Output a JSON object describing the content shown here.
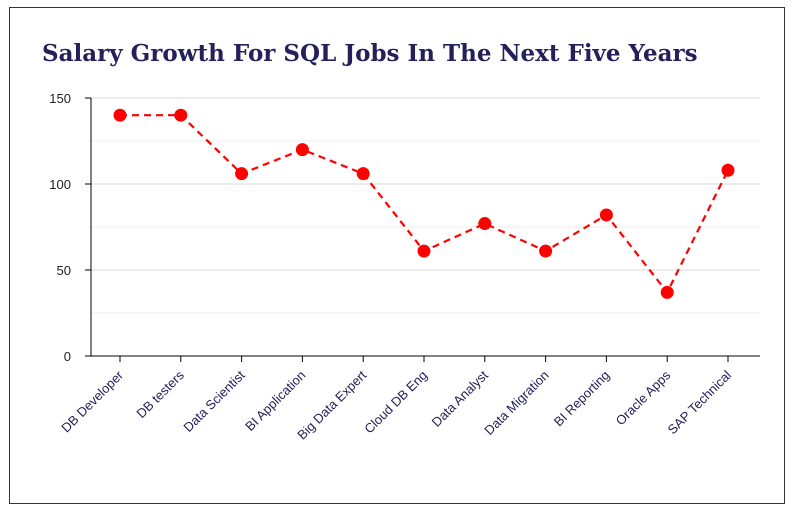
{
  "chart_data": {
    "type": "line",
    "title": "Salary Growth For SQL Jobs In The Next Five Years",
    "xlabel": "",
    "ylabel": "",
    "categories": [
      "DB Developer",
      "DB testers",
      "Data Scientist",
      "BI Application",
      "Big Data Expert",
      "Cloud DB Eng",
      "Data Analyst",
      "Data Migration",
      "BI Reporting",
      "Oracle Apps",
      "SAP Technical"
    ],
    "series": [
      {
        "values": [
          140,
          140,
          106,
          120,
          106,
          61,
          77,
          61,
          82,
          37,
          108
        ]
      }
    ],
    "ylim": [
      0,
      150
    ],
    "yticks": [
      0,
      50,
      100,
      150
    ],
    "grid": true,
    "legend": "none",
    "colors": {
      "line": "#ff0000",
      "marker": "#ff0000",
      "title": "#24205a",
      "grid": "#d9d9d9"
    }
  }
}
